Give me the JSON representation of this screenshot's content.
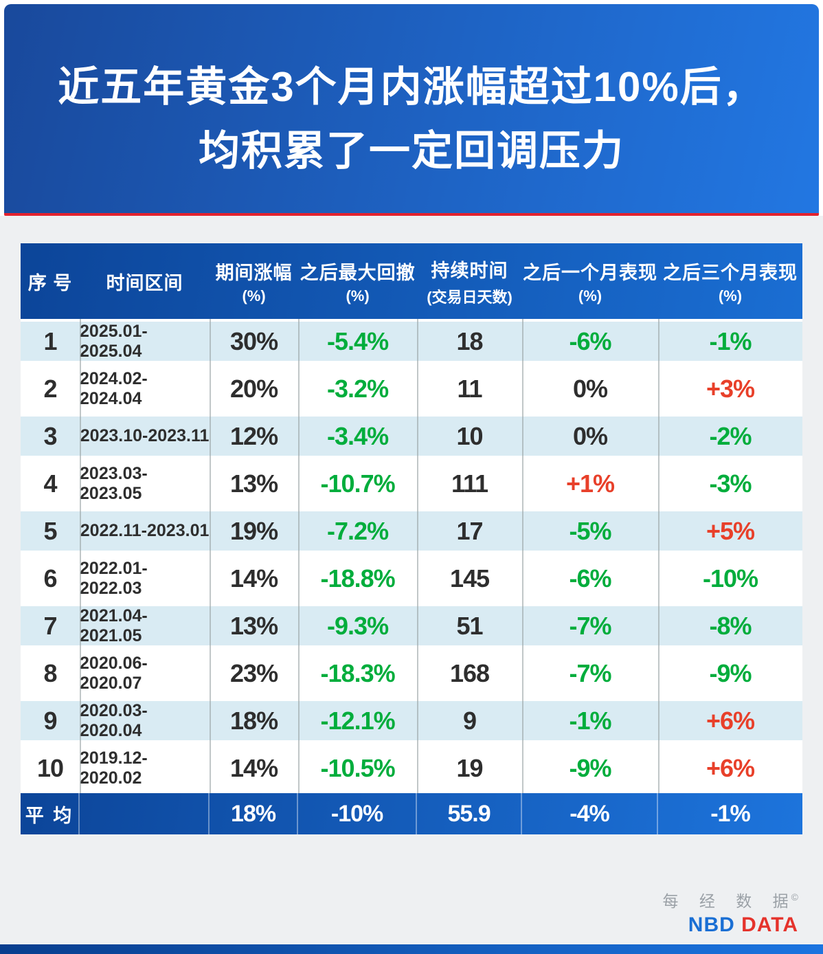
{
  "banner": {
    "title_line1": "近五年黄金3个月内涨幅超过10%后，",
    "title_line2": "均积累了一定回调压力"
  },
  "table": {
    "headers": [
      {
        "label": "序 号",
        "sub": ""
      },
      {
        "label": "时间区间",
        "sub": ""
      },
      {
        "label": "期间涨幅",
        "sub": "(%)"
      },
      {
        "label": "之后最大回撤",
        "sub": "(%)"
      },
      {
        "label": "持续时间",
        "sub": "(交易日天数)"
      },
      {
        "label": "之后一个月表现",
        "sub": "(%)"
      },
      {
        "label": "之后三个月表现",
        "sub": "(%)"
      }
    ],
    "columns": [
      {
        "key": "no",
        "name": "cell-index"
      },
      {
        "key": "period",
        "name": "cell-period"
      },
      {
        "key": "gain",
        "name": "cell-gain"
      },
      {
        "key": "drawdown",
        "name": "cell-max-drawdown"
      },
      {
        "key": "days",
        "name": "cell-duration-days"
      },
      {
        "key": "m1",
        "name": "cell-1-month-performance"
      },
      {
        "key": "m3",
        "name": "cell-3-month-performance"
      }
    ],
    "rows": [
      {
        "no": "1",
        "period": "2025.01-2025.04",
        "gain": "30%",
        "drawdown": "-5.4%",
        "days": "18",
        "m1": "-6%",
        "m3": "-1%",
        "gain_color": "dark",
        "drawdown_color": "green",
        "days_color": "dark",
        "m1_color": "green",
        "m3_color": "green"
      },
      {
        "no": "2",
        "period": "2024.02-2024.04",
        "gain": "20%",
        "drawdown": "-3.2%",
        "days": "11",
        "m1": "0%",
        "m3": "+3%",
        "gain_color": "dark",
        "drawdown_color": "green",
        "days_color": "dark",
        "m1_color": "dark",
        "m3_color": "red"
      },
      {
        "no": "3",
        "period": "2023.10-2023.11",
        "gain": "12%",
        "drawdown": "-3.4%",
        "days": "10",
        "m1": "0%",
        "m3": "-2%",
        "gain_color": "dark",
        "drawdown_color": "green",
        "days_color": "dark",
        "m1_color": "dark",
        "m3_color": "green"
      },
      {
        "no": "4",
        "period": "2023.03-2023.05",
        "gain": "13%",
        "drawdown": "-10.7%",
        "days": "111",
        "m1": "+1%",
        "m3": "-3%",
        "gain_color": "dark",
        "drawdown_color": "green",
        "days_color": "dark",
        "m1_color": "red",
        "m3_color": "green"
      },
      {
        "no": "5",
        "period": "2022.11-2023.01",
        "gain": "19%",
        "drawdown": "-7.2%",
        "days": "17",
        "m1": "-5%",
        "m3": "+5%",
        "gain_color": "dark",
        "drawdown_color": "green",
        "days_color": "dark",
        "m1_color": "green",
        "m3_color": "red"
      },
      {
        "no": "6",
        "period": "2022.01-2022.03",
        "gain": "14%",
        "drawdown": "-18.8%",
        "days": "145",
        "m1": "-6%",
        "m3": "-10%",
        "gain_color": "dark",
        "drawdown_color": "green",
        "days_color": "dark",
        "m1_color": "green",
        "m3_color": "green"
      },
      {
        "no": "7",
        "period": "2021.04-2021.05",
        "gain": "13%",
        "drawdown": "-9.3%",
        "days": "51",
        "m1": "-7%",
        "m3": "-8%",
        "gain_color": "dark",
        "drawdown_color": "green",
        "days_color": "dark",
        "m1_color": "green",
        "m3_color": "green"
      },
      {
        "no": "8",
        "period": "2020.06-2020.07",
        "gain": "23%",
        "drawdown": "-18.3%",
        "days": "168",
        "m1": "-7%",
        "m3": "-9%",
        "gain_color": "dark",
        "drawdown_color": "green",
        "days_color": "dark",
        "m1_color": "green",
        "m3_color": "green"
      },
      {
        "no": "9",
        "period": "2020.03-2020.04",
        "gain": "18%",
        "drawdown": "-12.1%",
        "days": "9",
        "m1": "-1%",
        "m3": "+6%",
        "gain_color": "dark",
        "drawdown_color": "green",
        "days_color": "dark",
        "m1_color": "green",
        "m3_color": "red"
      },
      {
        "no": "10",
        "period": "2019.12-2020.02",
        "gain": "14%",
        "drawdown": "-10.5%",
        "days": "19",
        "m1": "-9%",
        "m3": "+6%",
        "gain_color": "dark",
        "drawdown_color": "green",
        "days_color": "dark",
        "m1_color": "green",
        "m3_color": "red"
      }
    ],
    "average": {
      "label": "平 均",
      "period": "",
      "gain": "18%",
      "drawdown": "-10%",
      "days": "55.9",
      "m1": "-4%",
      "m3": "-1%"
    }
  },
  "chart_data": {
    "type": "table",
    "title": "近五年黄金3个月内涨幅超过10%后，均积累了一定回调压力",
    "columns": [
      "序号",
      "时间区间",
      "期间涨幅(%)",
      "之后最大回撤(%)",
      "持续时间(交易日天数)",
      "之后一个月表现(%)",
      "之后三个月表现(%)"
    ],
    "rows": [
      [
        1,
        "2025.01-2025.04",
        30,
        -5.4,
        18,
        -6,
        -1
      ],
      [
        2,
        "2024.02-2024.04",
        20,
        -3.2,
        11,
        0,
        3
      ],
      [
        3,
        "2023.10-2023.11",
        12,
        -3.4,
        10,
        0,
        -2
      ],
      [
        4,
        "2023.03-2023.05",
        13,
        -10.7,
        111,
        1,
        -3
      ],
      [
        5,
        "2022.11-2023.01",
        19,
        -7.2,
        17,
        -5,
        5
      ],
      [
        6,
        "2022.01-2022.03",
        14,
        -18.8,
        145,
        -6,
        -10
      ],
      [
        7,
        "2021.04-2021.05",
        13,
        -9.3,
        51,
        -7,
        -8
      ],
      [
        8,
        "2020.06-2020.07",
        23,
        -18.3,
        168,
        -7,
        -9
      ],
      [
        9,
        "2020.03-2020.04",
        18,
        -12.1,
        9,
        -1,
        6
      ],
      [
        10,
        "2019.12-2020.02",
        14,
        -10.5,
        19,
        -9,
        6
      ]
    ],
    "average_row": [
      "平均",
      "",
      18,
      -10,
      55.9,
      -4,
      -1
    ],
    "legend_position": "none",
    "grid": "column-separators"
  },
  "footer": {
    "logo_cn": "每 经 数 据",
    "copyright": "©",
    "logo_nbd": "NBD",
    "logo_data": "DATA"
  },
  "colors": {
    "green": "#00ad3c",
    "red": "#e8402a",
    "dark": "#2e2e2e",
    "row-blue": "#d9ebf3",
    "sep": "#97a1a4",
    "page-bg": "#eef0f2",
    "banner_blue_left": "#19499c",
    "banner_blue_right": "#2277e2",
    "red_underline": "#e3222e",
    "header_blue_left": "#0c4599",
    "header_blue_right": "#1a6ed3",
    "logo_gray": "#9ba1a7",
    "logo_blue": "#1a6fd4",
    "logo_red": "#e5332c"
  }
}
